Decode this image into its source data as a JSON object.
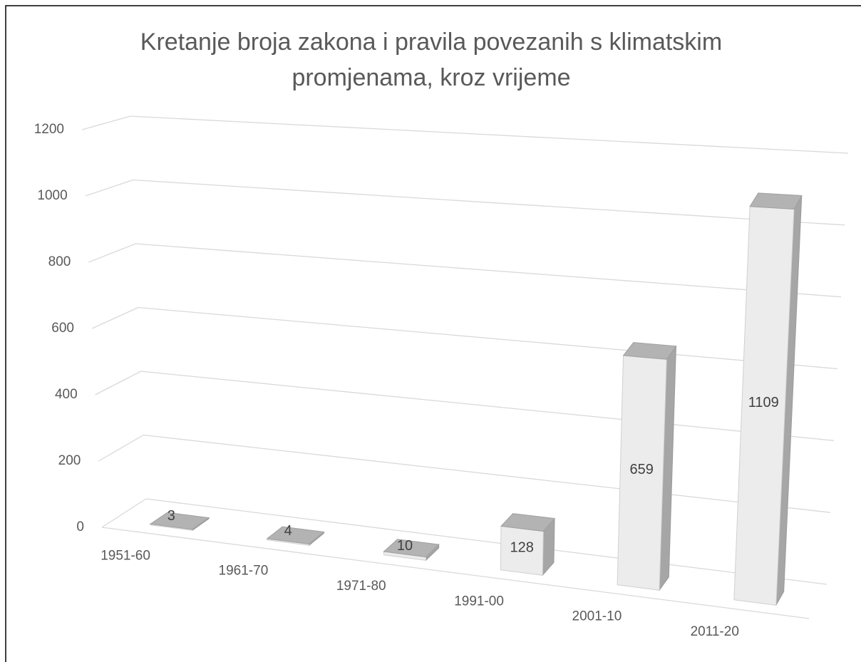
{
  "chart_data": {
    "type": "bar3d",
    "title": "Kretanje broja zakona i pravila povezanih s klimatskim promjenama, kroz vrijeme",
    "categories": [
      "1951-60",
      "1961-70",
      "1971-80",
      "1991-00",
      "2001-10",
      "2011-20"
    ],
    "values": [
      3,
      4,
      10,
      128,
      659,
      1109
    ],
    "ylim": [
      0,
      1200
    ],
    "yticks": [
      0,
      200,
      400,
      600,
      800,
      1000,
      1200
    ],
    "grid": true
  }
}
